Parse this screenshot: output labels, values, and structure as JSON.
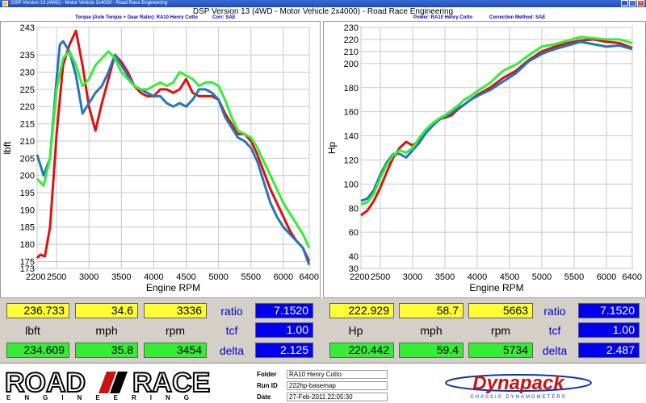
{
  "window": {
    "title": "DSP Version 13 (4WD) - Motor Vehicle 2x4000 - Road Race Engineering",
    "main_title": "DSP Version 13 (4WD - Motor Vehicle 2x4000) - Road Race Engineering"
  },
  "left_chart": {
    "header": {
      "title": "Torque (Axle Torque + Gear Ratio): RA10 Henry Cotto",
      "corr": "Corr: SAE"
    },
    "chart_data": {
      "type": "line",
      "xlabel": "Engine RPM",
      "ylabel": "lbft",
      "xlim": [
        2200,
        6400
      ],
      "ylim": [
        173,
        243
      ],
      "x_ticks": [
        "2200",
        "2500",
        "3000",
        "3500",
        "4000",
        "4500",
        "5000",
        "5500",
        "6000",
        "6400"
      ],
      "x_tick_values": [
        2200,
        2500,
        3000,
        3500,
        4000,
        4500,
        5000,
        5500,
        6000,
        6400
      ],
      "y_ticks": [
        "173",
        "175",
        "180",
        "185",
        "190",
        "195",
        "200",
        "205",
        "210",
        "215",
        "220",
        "225",
        "230",
        "235",
        "243"
      ],
      "y_tick_values": [
        173,
        175,
        180,
        185,
        190,
        195,
        200,
        205,
        210,
        215,
        220,
        225,
        230,
        235,
        243
      ],
      "series": [
        {
          "color": "#dd1111",
          "x": [
            2200,
            2250,
            2320,
            2400,
            2500,
            2600,
            2700,
            2800,
            2900,
            3000,
            3100,
            3200,
            3300,
            3400,
            3500,
            3600,
            3700,
            3800,
            3900,
            4000,
            4100,
            4200,
            4300,
            4400,
            4500,
            4600,
            4700,
            4800,
            4900,
            5000,
            5100,
            5200,
            5300,
            5400,
            5500,
            5600,
            5700,
            5800,
            5900,
            6000,
            6100,
            6200,
            6300,
            6400
          ],
          "y": [
            176,
            177,
            176.5,
            185,
            212,
            232,
            238,
            242,
            232,
            220,
            213,
            221,
            228,
            235,
            233,
            230,
            226,
            224,
            223,
            223,
            225,
            225,
            224,
            225,
            228,
            224,
            223,
            223,
            223,
            222,
            218,
            215,
            212,
            212,
            210,
            206,
            201,
            196,
            192,
            188,
            184,
            181,
            179,
            175
          ]
        },
        {
          "color": "#2277bb",
          "x": [
            2200,
            2300,
            2400,
            2500,
            2550,
            2600,
            2700,
            2800,
            2900,
            3000,
            3100,
            3200,
            3300,
            3400,
            3500,
            3600,
            3700,
            3800,
            3900,
            4000,
            4100,
            4200,
            4300,
            4400,
            4500,
            4600,
            4700,
            4800,
            4900,
            5000,
            5100,
            5200,
            5300,
            5400,
            5500,
            5600,
            5700,
            5800,
            5900,
            6000,
            6100,
            6200,
            6300,
            6400
          ],
          "y": [
            206,
            200,
            205,
            228,
            238,
            239,
            236,
            229,
            218,
            221,
            224,
            226,
            230,
            235,
            232,
            229,
            226,
            225,
            224,
            223,
            223,
            221,
            220,
            221,
            220,
            222,
            225,
            225,
            224,
            222,
            217,
            214,
            211,
            210,
            208,
            204,
            198,
            192,
            188,
            185,
            183,
            181,
            179,
            174
          ]
        },
        {
          "color": "#33ee33",
          "x": [
            2200,
            2300,
            2400,
            2500,
            2600,
            2700,
            2800,
            2900,
            3000,
            3100,
            3200,
            3300,
            3400,
            3500,
            3600,
            3700,
            3800,
            3900,
            4000,
            4100,
            4200,
            4300,
            4400,
            4500,
            4600,
            4700,
            4800,
            4900,
            5000,
            5100,
            5200,
            5300,
            5400,
            5500,
            5600,
            5700,
            5800,
            5900,
            6000,
            6100,
            6200,
            6300,
            6400
          ],
          "y": [
            199,
            197,
            205,
            225,
            234,
            236,
            232,
            226,
            228,
            232,
            234,
            236,
            234,
            230,
            228,
            226,
            225,
            225,
            226,
            227,
            226,
            227,
            230,
            229,
            228,
            226,
            227,
            227,
            226,
            222,
            217,
            213,
            212,
            211,
            208,
            204,
            200,
            196,
            192,
            189,
            186,
            183,
            179
          ]
        }
      ]
    }
  },
  "right_chart": {
    "header": {
      "title": "Power: RA10 Henry Cotto",
      "method": "Correction Method: SAE"
    },
    "chart_data": {
      "type": "line",
      "xlabel": "Engine RPM",
      "ylabel": "Hp",
      "xlim": [
        2200,
        6400
      ],
      "ylim": [
        30,
        230
      ],
      "x_ticks": [
        "2200",
        "2500",
        "3000",
        "3500",
        "4000",
        "4500",
        "5000",
        "5500",
        "6000",
        "6400"
      ],
      "x_tick_values": [
        2200,
        2500,
        3000,
        3500,
        4000,
        4500,
        5000,
        5500,
        6000,
        6400
      ],
      "y_ticks": [
        "30",
        "40",
        "60",
        "80",
        "100",
        "120",
        "140",
        "160",
        "180",
        "200",
        "210",
        "220",
        "230"
      ],
      "y_tick_values": [
        30,
        40,
        60,
        80,
        100,
        120,
        140,
        160,
        180,
        200,
        210,
        220,
        230
      ],
      "series": [
        {
          "color": "#dd1111",
          "x": [
            2200,
            2300,
            2400,
            2500,
            2600,
            2700,
            2800,
            2900,
            3000,
            3100,
            3200,
            3300,
            3400,
            3500,
            3600,
            3700,
            3800,
            3900,
            4000,
            4200,
            4400,
            4600,
            4800,
            5000,
            5200,
            5400,
            5600,
            5800,
            6000,
            6200,
            6400
          ],
          "y": [
            74,
            78,
            86,
            97,
            110,
            122,
            130,
            135,
            132,
            136,
            142,
            148,
            154,
            155,
            157,
            162,
            166,
            170,
            174,
            180,
            188,
            194,
            203,
            210,
            214,
            217,
            219,
            220,
            218,
            217,
            213
          ]
        },
        {
          "color": "#2277bb",
          "x": [
            2200,
            2300,
            2400,
            2500,
            2600,
            2700,
            2800,
            2900,
            3000,
            3100,
            3200,
            3300,
            3400,
            3500,
            3600,
            3700,
            3800,
            3900,
            4000,
            4200,
            4400,
            4600,
            4800,
            5000,
            5200,
            5400,
            5600,
            5800,
            6000,
            6200,
            6400
          ],
          "y": [
            86,
            88,
            95,
            108,
            118,
            125,
            125,
            122,
            128,
            134,
            142,
            148,
            153,
            156,
            159,
            163,
            166,
            170,
            173,
            178,
            185,
            192,
            202,
            208,
            212,
            215,
            218,
            216,
            214,
            215,
            212
          ]
        },
        {
          "color": "#33ee33",
          "x": [
            2200,
            2300,
            2400,
            2500,
            2600,
            2700,
            2800,
            2900,
            3000,
            3100,
            3200,
            3300,
            3400,
            3500,
            3600,
            3700,
            3800,
            3900,
            4000,
            4200,
            4400,
            4600,
            4800,
            5000,
            5200,
            5400,
            5600,
            5800,
            6000,
            6200,
            6400
          ],
          "y": [
            83,
            85,
            92,
            105,
            116,
            124,
            128,
            126,
            130,
            138,
            145,
            150,
            154,
            157,
            161,
            165,
            170,
            173,
            177,
            184,
            194,
            199,
            207,
            214,
            216,
            219,
            222,
            221,
            220,
            220,
            217
          ]
        }
      ]
    }
  },
  "readouts": {
    "left": {
      "row1": [
        "236.733",
        "34.6",
        "3336"
      ],
      "units": [
        "lbft",
        "mph",
        "rpm"
      ],
      "row3": [
        "234.609",
        "35.8",
        "3454"
      ],
      "labels": [
        "ratio",
        "tcf",
        "delta"
      ],
      "values": [
        "7.1520",
        "1.00",
        "2.125"
      ]
    },
    "right": {
      "row1": [
        "222.929",
        "58.7",
        "5663"
      ],
      "units": [
        "Hp",
        "mph",
        "rpm"
      ],
      "row3": [
        "220.442",
        "59.4",
        "5734"
      ],
      "labels": [
        "ratio",
        "tcf",
        "delta"
      ],
      "values": [
        "7.1520",
        "1.00",
        "2.487"
      ]
    }
  },
  "footer": {
    "brand": {
      "word1": "ROAD",
      "word2": "RACE",
      "sub": "ENGINEERING"
    },
    "folder_label": "Folder",
    "folder_value": "RA10 Henry Cotto",
    "runid_label": "Run ID",
    "runid_value": "222hp-basemap",
    "date_label": "Date",
    "date_value": "27-Feb-2011 22:05:30",
    "dyna": {
      "name": "Dynapack",
      "sub": "CHASSIS DYNAMOMETERS"
    }
  },
  "colors": {
    "red": "#dd1111",
    "blue": "#2277bb",
    "green": "#33ee33",
    "yellow_box": "#ffff33",
    "green_box": "#33ee33",
    "blue_box": "#0000ee"
  }
}
